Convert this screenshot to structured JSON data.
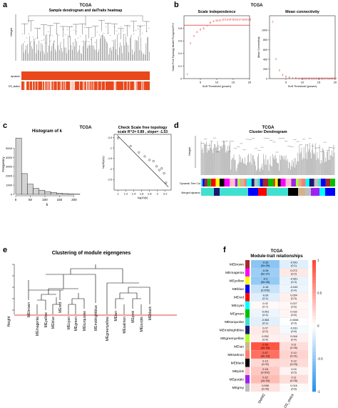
{
  "panel_letters": {
    "a": "a",
    "b": "b",
    "c": "c",
    "d": "d",
    "e": "e",
    "f": "f"
  },
  "panel_a": {
    "header": "TCGA",
    "title": "Sample dendrogram and daiTraits heatmap",
    "ylabel": "Height",
    "rows": [
      "dynamic",
      "OS_status"
    ]
  },
  "panel_b_header": "TCGA",
  "panel_c_header": "TCGA",
  "chart_data": [
    {
      "id": "scale-independence",
      "type": "scatter",
      "title": "Scale independence",
      "xlabel": "Soft Threshold (power)",
      "ylabel": "Scale Free Topology Model Fit,signed R^2",
      "xlim": [
        0,
        20
      ],
      "ylim": [
        0.0,
        1.0
      ],
      "xticks": [
        5,
        10,
        15,
        20
      ],
      "yticks": [
        0.0,
        0.2,
        0.4,
        0.6,
        0.8
      ],
      "hline": 0.85,
      "points": [
        {
          "x": 1,
          "y": 0.07,
          "label": "1"
        },
        {
          "x": 2,
          "y": 0.56,
          "label": "2"
        },
        {
          "x": 3,
          "y": 0.68,
          "label": "3"
        },
        {
          "x": 4,
          "y": 0.74,
          "label": "4"
        },
        {
          "x": 5,
          "y": 0.78,
          "label": "5"
        },
        {
          "x": 6,
          "y": 0.8,
          "label": "6"
        },
        {
          "x": 7,
          "y": 0.84,
          "label": "7"
        },
        {
          "x": 8,
          "y": 0.89,
          "label": "8"
        },
        {
          "x": 9,
          "y": 0.91,
          "label": "9"
        },
        {
          "x": 10,
          "y": 0.92,
          "label": "10"
        },
        {
          "x": 11,
          "y": 0.93,
          "label": "11"
        },
        {
          "x": 12,
          "y": 0.94,
          "label": "12"
        },
        {
          "x": 13,
          "y": 0.94,
          "label": "13"
        },
        {
          "x": 14,
          "y": 0.94,
          "label": "14"
        },
        {
          "x": 15,
          "y": 0.94,
          "label": "15"
        },
        {
          "x": 16,
          "y": 0.94,
          "label": "16"
        },
        {
          "x": 17,
          "y": 0.94,
          "label": "17"
        },
        {
          "x": 18,
          "y": 0.94,
          "label": "18"
        },
        {
          "x": 19,
          "y": 0.94,
          "label": "19"
        },
        {
          "x": 20,
          "y": 0.94,
          "label": "20"
        }
      ]
    },
    {
      "id": "mean-connectivity",
      "type": "scatter",
      "title": "Mean connectivity",
      "xlabel": "Soft Threshold (power)",
      "ylabel": "Mean Connectivity",
      "xlim": [
        0,
        20
      ],
      "ylim": [
        0,
        1300
      ],
      "xticks": [
        5,
        10,
        15,
        20
      ],
      "yticks": [
        0,
        200,
        400,
        600,
        800,
        1000
      ],
      "points": [
        {
          "x": 1,
          "y": 1180,
          "label": "1"
        },
        {
          "x": 2,
          "y": 400,
          "label": "2"
        },
        {
          "x": 3,
          "y": 170,
          "label": "3"
        },
        {
          "x": 4,
          "y": 80,
          "label": "4"
        },
        {
          "x": 5,
          "y": 40,
          "label": "5"
        },
        {
          "x": 6,
          "y": 22,
          "label": "6"
        },
        {
          "x": 7,
          "y": 13,
          "label": "7"
        },
        {
          "x": 8,
          "y": 8,
          "label": "8"
        },
        {
          "x": 9,
          "y": 5,
          "label": "9"
        },
        {
          "x": 10,
          "y": 3,
          "label": "10"
        },
        {
          "x": 11,
          "y": 2,
          "label": "11"
        },
        {
          "x": 12,
          "y": 2,
          "label": "12"
        },
        {
          "x": 13,
          "y": 1,
          "label": "13"
        },
        {
          "x": 14,
          "y": 1,
          "label": "14"
        },
        {
          "x": 15,
          "y": 1,
          "label": "15"
        },
        {
          "x": 16,
          "y": 1,
          "label": "16"
        },
        {
          "x": 17,
          "y": 1,
          "label": "17"
        },
        {
          "x": 18,
          "y": 1,
          "label": "18"
        },
        {
          "x": 19,
          "y": 1,
          "label": "19"
        },
        {
          "x": 20,
          "y": 1,
          "label": "20"
        }
      ]
    },
    {
      "id": "histogram-k",
      "type": "bar",
      "title": "Histogram of k",
      "xlabel": "k",
      "ylabel": "Frequency",
      "xlim": [
        0,
        215
      ],
      "ylim": [
        0,
        6500
      ],
      "xticks": [
        0,
        50,
        100,
        150,
        200
      ],
      "yticks": [
        0,
        1000,
        2000,
        3000,
        4000,
        5000
      ],
      "bin_width": 20,
      "values": [
        6100,
        2250,
        1100,
        650,
        450,
        300,
        200,
        120,
        80,
        40,
        20
      ]
    },
    {
      "id": "scale-free-topology",
      "type": "scatter",
      "title": "Check Scale free topology",
      "subtitle": "scale R^2= 0.89 , slope= -1.53",
      "xlabel": "log10(k)",
      "ylabel": "log10(p(k))",
      "xlim": [
        0.9,
        2.35
      ],
      "ylim": [
        -3.0,
        -0.35
      ],
      "xticks": [
        1.0,
        1.2,
        1.4,
        1.6,
        1.8,
        2.0,
        2.2
      ],
      "yticks": [
        -0.5,
        -1.0,
        -1.5,
        -2.0,
        -2.5
      ],
      "x": [
        1.0,
        1.32,
        1.53,
        1.68,
        1.8,
        1.9,
        1.98,
        2.05,
        2.11,
        2.17,
        2.22
      ],
      "y": [
        -0.53,
        -0.91,
        -1.21,
        -1.4,
        -1.57,
        -1.62,
        -1.87,
        -2.05,
        -1.97,
        -2.2,
        -2.65
      ],
      "fit_line": {
        "x": [
          0.98,
          2.28
        ],
        "y": [
          -0.4,
          -2.85
        ]
      }
    },
    {
      "id": "cluster-dendrogram",
      "type": "other",
      "header": "TCGA",
      "title": "Cluster Dendrogram",
      "ylabel": "Height",
      "rows": [
        "Dynamic Tree Cut",
        "Merged dynamic"
      ]
    },
    {
      "id": "module-eigengenes",
      "type": "other",
      "title": "Clustering of module eigengenes",
      "ylabel": "Height",
      "leaves": [
        "MEbrown",
        "MEmagenta",
        "MEyellow",
        "MEblue",
        "MEred",
        "MEcyan",
        "MEgreen",
        "MEturquoise",
        "MEmidnightblue",
        "MEgreenyellow",
        "MEtan",
        "MEsalmon",
        "MEpink",
        "MEpurple",
        "MEblack"
      ]
    },
    {
      "id": "module-trait",
      "type": "heatmap",
      "header": "TCGA",
      "title": "Module-trait relationships",
      "columns": [
        "SMIM2",
        "OS_status"
      ],
      "legend_ticks": [
        "1",
        "0.5",
        "0",
        "-0.5",
        "-1"
      ],
      "rows": [
        {
          "module": "MEbrown",
          "color": "#a52a2a",
          "v": [
            -0.33,
            -0.091
          ],
          "c1": [
            "-0.33",
            "(2e-09)"
          ],
          "c2": [
            "-0.091",
            "(0.1)"
          ]
        },
        {
          "module": "MEmagenta",
          "color": "#ff00ff",
          "v": [
            -0.28,
            0.072
          ],
          "c1": [
            "-0.28",
            "(5e-07)"
          ],
          "c2": [
            "0.072",
            "(0.2)"
          ]
        },
        {
          "module": "MEyellow",
          "color": "#ffff00",
          "v": [
            -0.3,
            -0.061
          ],
          "c1": [
            "-0.3",
            "(9e-08)"
          ],
          "c2": [
            "-0.061",
            "(0.3)"
          ]
        },
        {
          "module": "MEblue",
          "color": "#0000ff",
          "v": [
            -0.16,
            -0.049
          ],
          "c1": [
            "-0.16",
            "(0.005)"
          ],
          "c2": [
            "-0.049",
            "(0.4)"
          ]
        },
        {
          "module": "MEred",
          "color": "#ff0000",
          "v": [
            -0.09,
            0.054
          ],
          "c1": [
            "-0.09",
            "(0.1)"
          ],
          "c2": [
            "0.054",
            "(0.3)"
          ]
        },
        {
          "module": "MEcyan",
          "color": "#00ffff",
          "v": [
            0.02,
            0.027
          ],
          "c1": [
            "0.02",
            "(0.7)"
          ],
          "c2": [
            "0.027",
            "(0.6)"
          ]
        },
        {
          "module": "MEgreen",
          "color": "#00c000",
          "v": [
            -0.051,
            0.032
          ],
          "c1": [
            "-0.051",
            "(0.4)"
          ],
          "c2": [
            "0.032",
            "(0.6)"
          ]
        },
        {
          "module": "MEturquoise",
          "color": "#40e0d0",
          "v": [
            -0.084,
            -0.0066
          ],
          "c1": [
            "-0.084",
            "(0.1)"
          ],
          "c2": [
            "-0.0066",
            "(0.9)"
          ]
        },
        {
          "module": "MEmidnightblue",
          "color": "#191970",
          "v": [
            0.07,
            -0.031
          ],
          "c1": [
            "0.07",
            "(0.2)"
          ],
          "c2": [
            "-0.031",
            "(0.6)"
          ]
        },
        {
          "module": "MEgreenyellow",
          "color": "#adff2f",
          "v": [
            0.052,
            0.046
          ],
          "c1": [
            "0.052",
            "(0.4)"
          ],
          "c2": [
            "0.046",
            "(0.4)"
          ]
        },
        {
          "module": "MEtan",
          "color": "#d2b48c",
          "v": [
            0.56,
            0.11
          ],
          "c1": [
            "0.56",
            "(3e-26)"
          ],
          "c2": [
            "0.11",
            "(0.06)"
          ]
        },
        {
          "module": "MEsalmon",
          "color": "#fa8072",
          "v": [
            0.47,
            0.14
          ],
          "c1": [
            "0.47",
            "(3e-18)"
          ],
          "c2": [
            "0.14",
            "(0.01)"
          ]
        },
        {
          "module": "MEblack",
          "color": "#000000",
          "v": [
            0.13,
            0.12
          ],
          "c1": [
            "0.13",
            "(0.02)"
          ],
          "c2": [
            "0.12",
            "(0.03)"
          ]
        },
        {
          "module": "MEpink",
          "color": "#ffc0cb",
          "v": [
            0.18,
            0.04
          ],
          "c1": [
            "0.18",
            "(0.002)"
          ],
          "c2": [
            "0.04",
            "(0.5)"
          ]
        },
        {
          "module": "MEpurple",
          "color": "#a020f0",
          "v": [
            0.22,
            0.11
          ],
          "c1": [
            "0.22",
            "(1e-04)"
          ],
          "c2": [
            "0.11",
            "(0.05)"
          ]
        },
        {
          "module": "MEgrey",
          "color": "#bebebe",
          "v": [
            0.098,
            0.016
          ],
          "c1": [
            "0.098",
            "(0.09)"
          ],
          "c2": [
            "0.016",
            "(0.8)"
          ]
        }
      ]
    }
  ]
}
